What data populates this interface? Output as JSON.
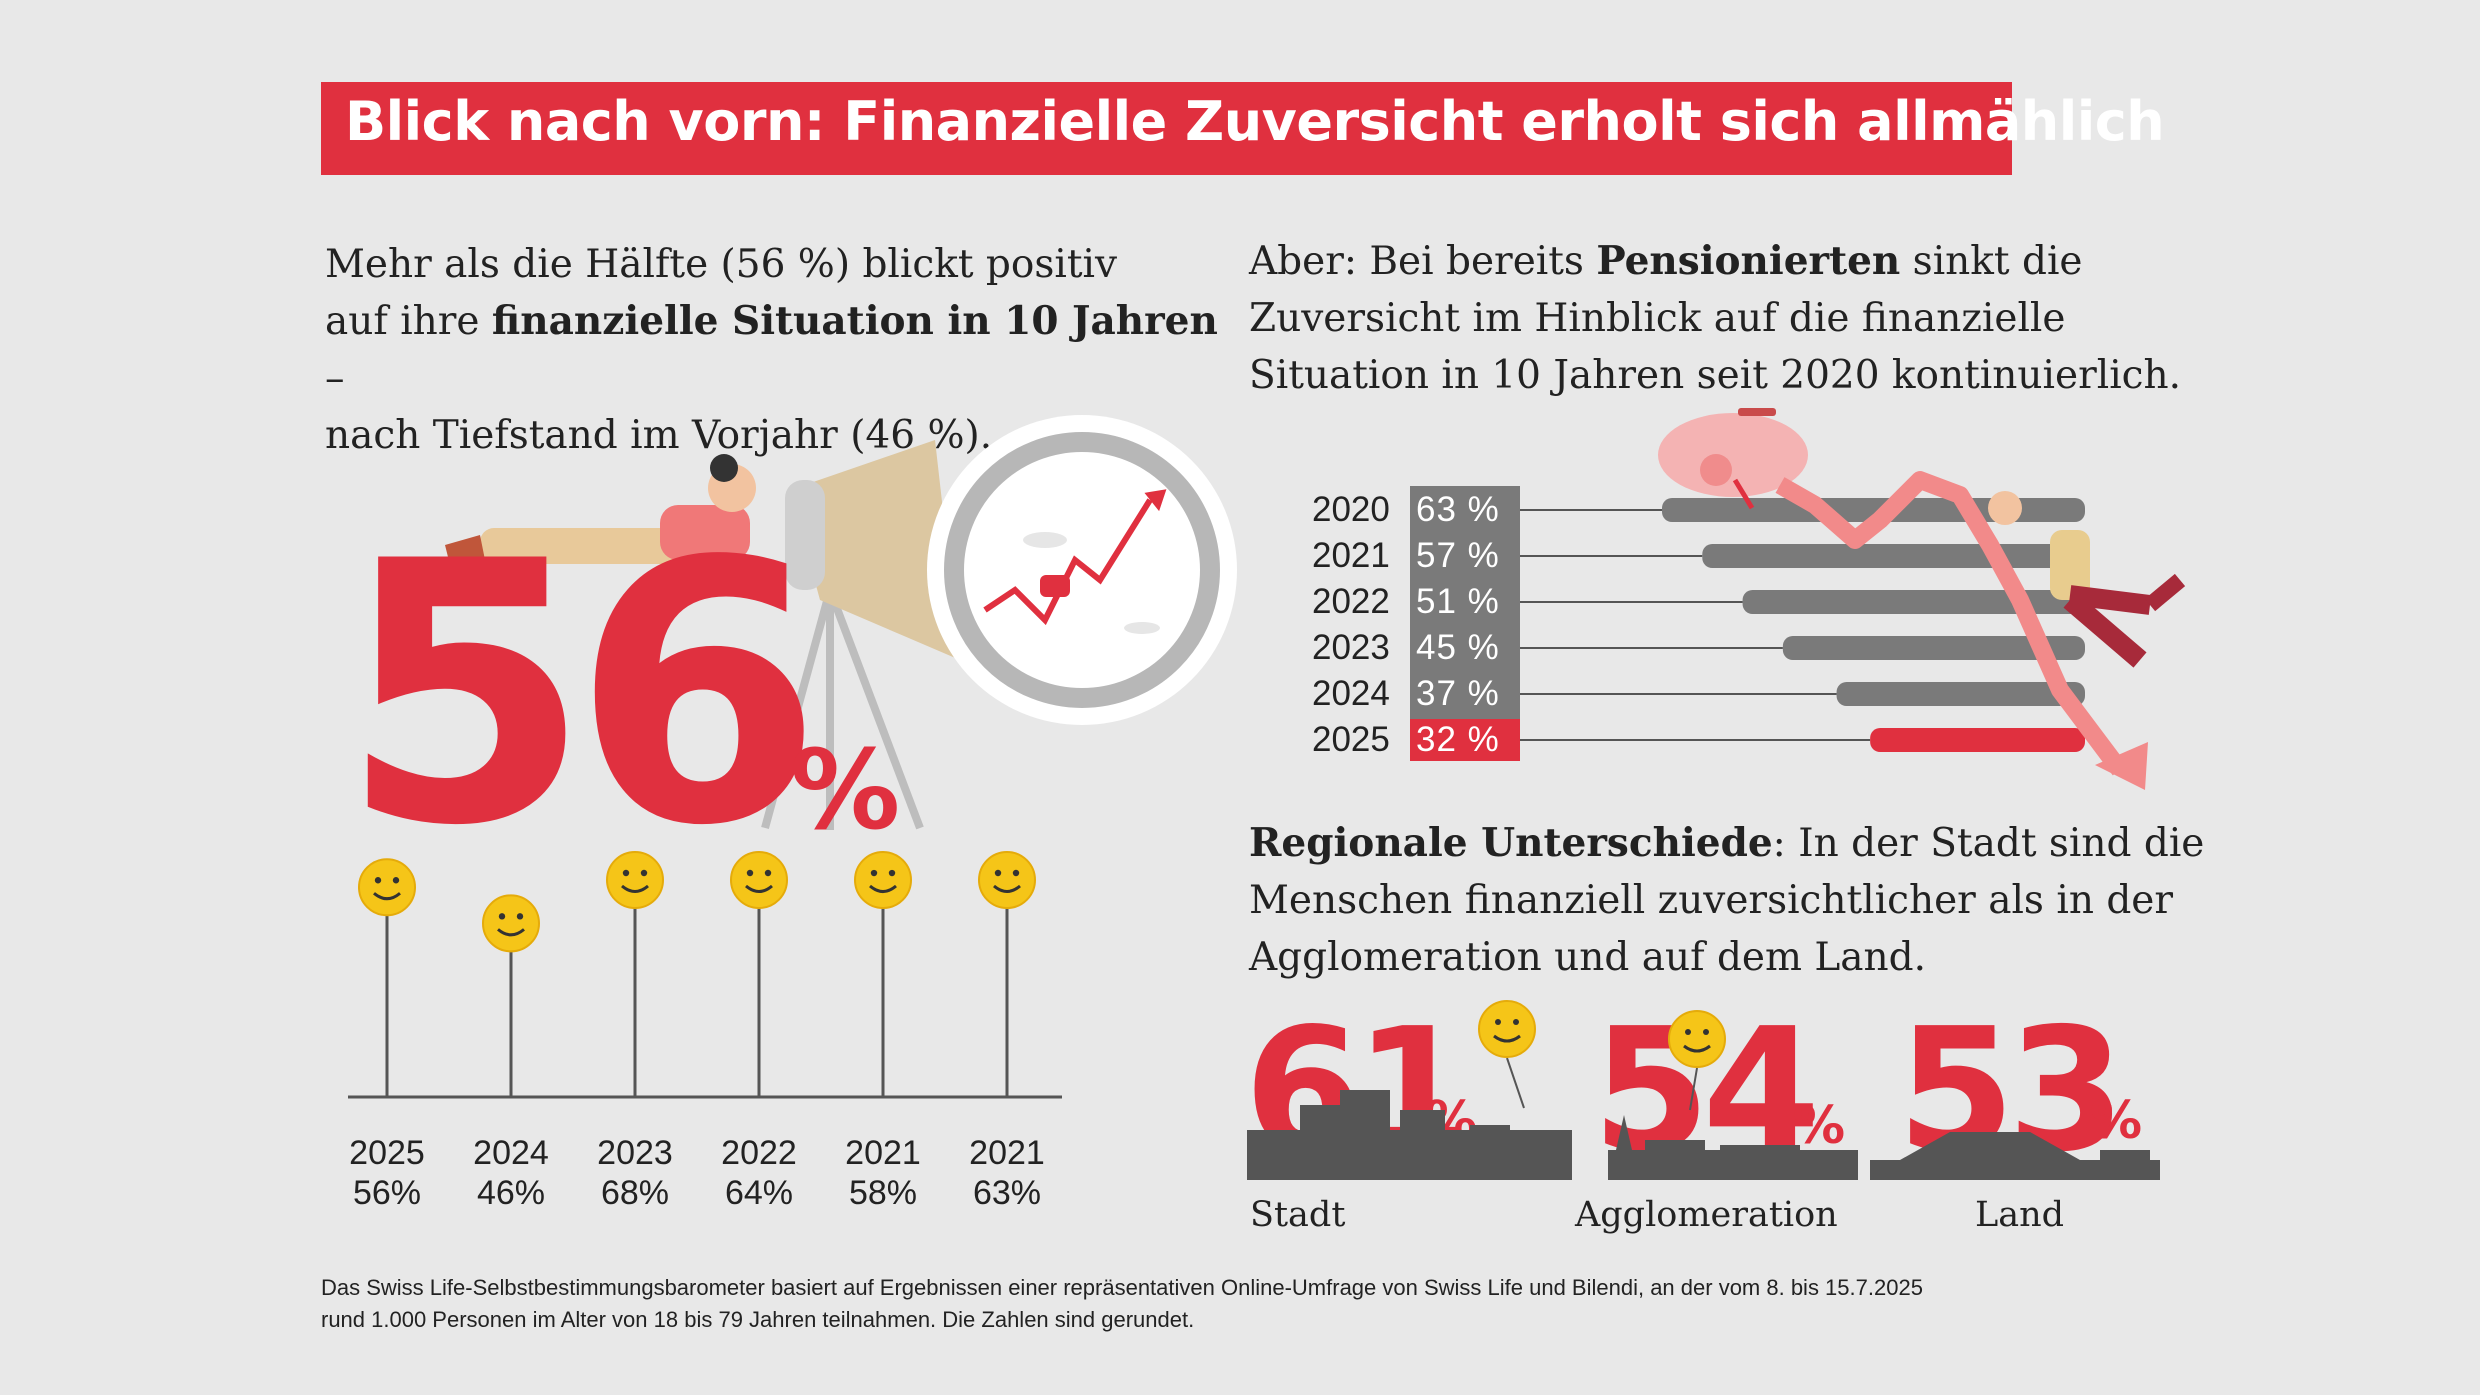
{
  "title": "Blick nach vorn: Finanzielle Zuversicht erholt sich allmählich",
  "left_text": {
    "line1": "Mehr als die Hälfte (56 %) blickt positiv",
    "line2_pre": "auf ihre ",
    "line2_bold": "finanzielle Situation in 10 Jahren",
    "line2_post": " –",
    "line3": "nach Tiefstand im Vorjahr (46 %)."
  },
  "right_text": {
    "line1_pre": "Aber: Bei bereits ",
    "line1_bold": "Pensionierten",
    "line1_post": " sinkt die",
    "line2": "Zuversicht im Hinblick auf die finanzielle",
    "line3": "Situation in 10 Jahren seit 2020 kontinuierlich."
  },
  "big_number": {
    "value": "56",
    "unit": "%"
  },
  "regional_text": {
    "line1_bold": "Regionale Unterschiede",
    "line1_post": ": In der Stadt sind die",
    "line2": "Menschen finanziell zuversichtlicher als in der",
    "line3": "Agglomeration und auf dem Land."
  },
  "footer": {
    "line1": "Das Swiss Life-Selbstbestimmungsbarometer basiert auf Ergebnissen einer repräsentativen Online-Umfrage von Swiss Life und Bilendi, an der vom 8. bis 15.7.2025",
    "line2": "rund 1.000 Personen im Alter von 18 bis 79 Jahren teilnahmen. Die Zahlen sind gerundet."
  },
  "colors": {
    "accent": "#e0303f",
    "bar_gray": "#7a7a7a",
    "smiley": "#f5c518",
    "background": "#e8e8e8"
  },
  "chart_data": [
    {
      "type": "lollipop",
      "categories": [
        "2025",
        "2024",
        "2023",
        "2022",
        "2021",
        "2021"
      ],
      "values": [
        56,
        46,
        68,
        64,
        58,
        63
      ],
      "value_labels": [
        "56%",
        "46%",
        "68%",
        "64%",
        "58%",
        "63%"
      ],
      "marker_icon": "smiley-icon"
    },
    {
      "type": "bar",
      "orientation": "horizontal",
      "categories": [
        "2020",
        "2021",
        "2022",
        "2023",
        "2024",
        "2025"
      ],
      "values": [
        63,
        57,
        51,
        45,
        37,
        32
      ],
      "value_labels": [
        "63 %",
        "57 %",
        "51 %",
        "45 %",
        "37 %",
        "32 %"
      ],
      "highlight": "2025",
      "xlim": [
        0,
        63
      ]
    },
    {
      "type": "bar",
      "categories": [
        "Stadt",
        "Agglomeration",
        "Land"
      ],
      "values": [
        61,
        54,
        53
      ],
      "value_labels": [
        "61",
        "54",
        "53"
      ],
      "unit": "%"
    }
  ]
}
